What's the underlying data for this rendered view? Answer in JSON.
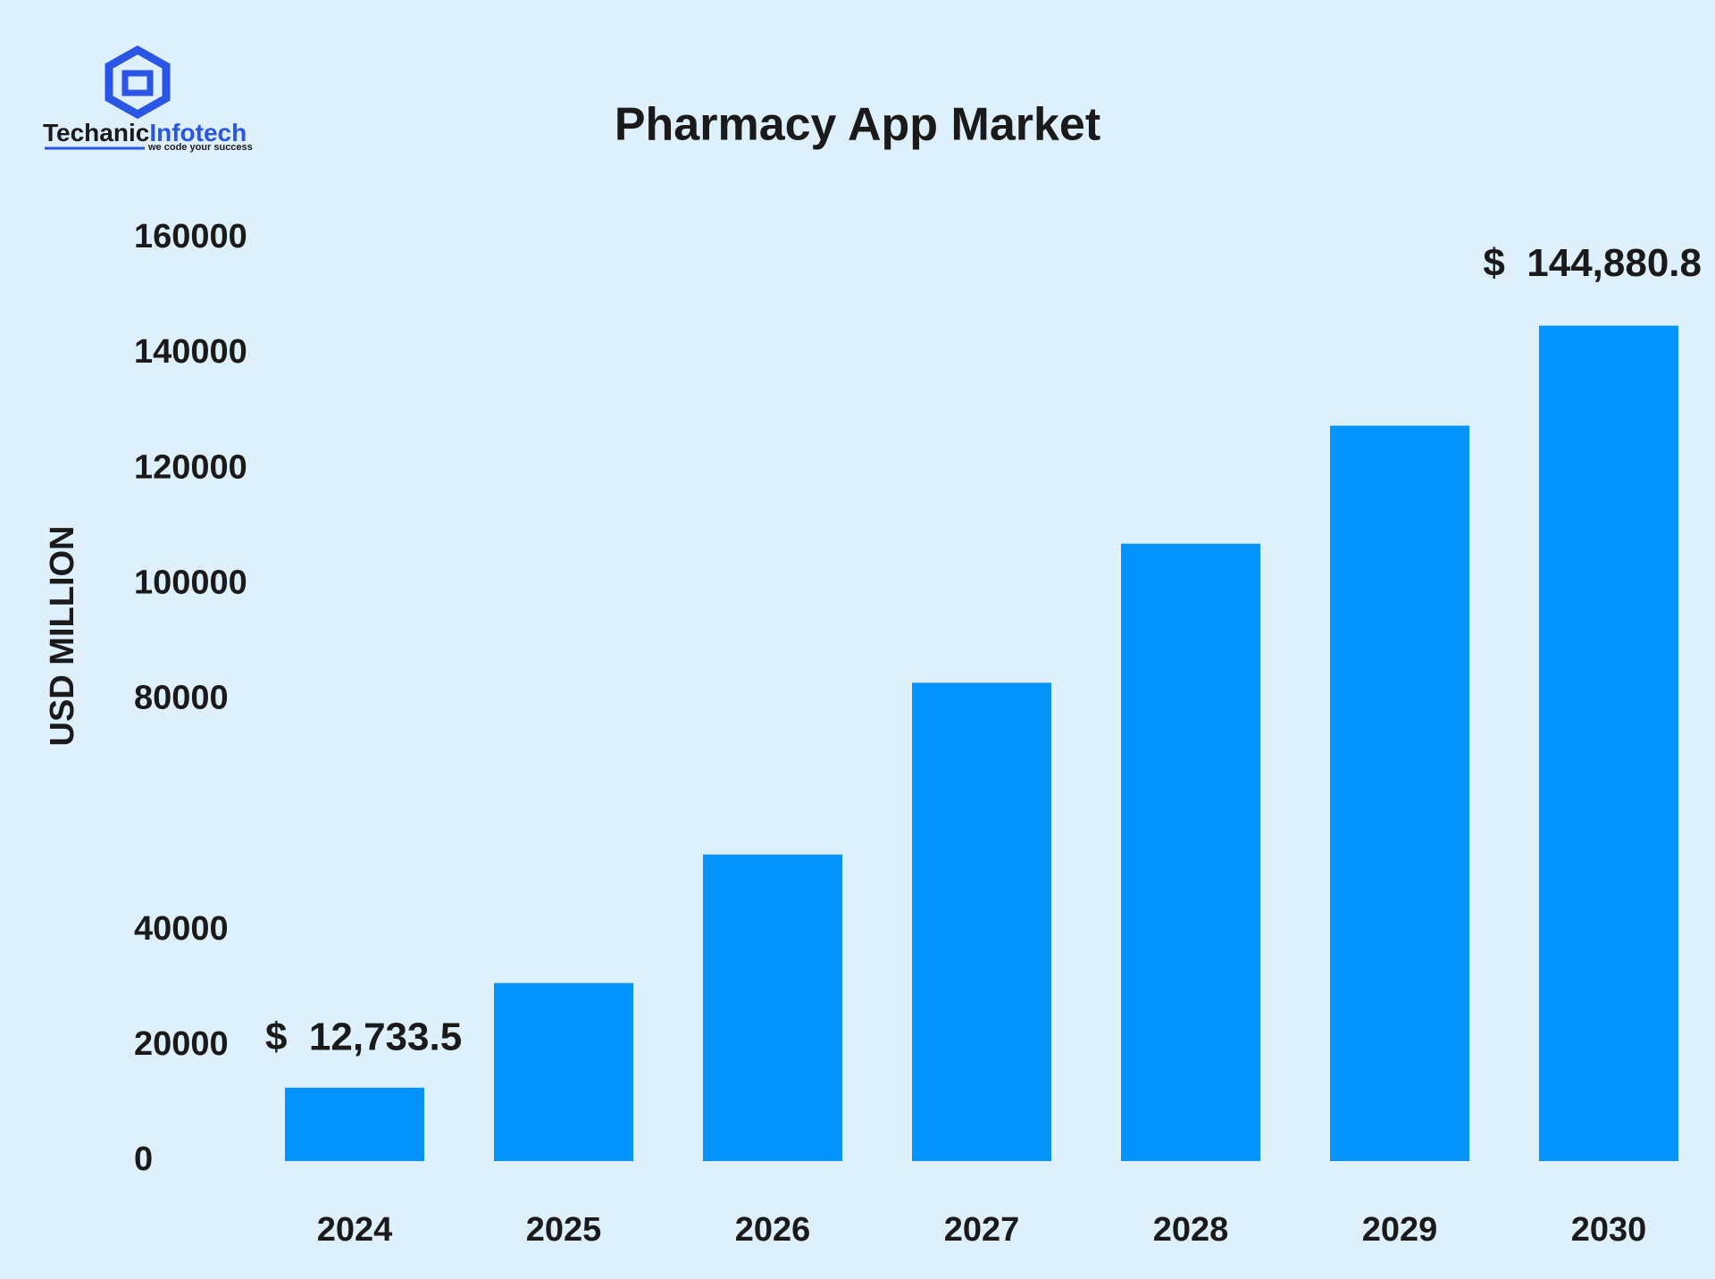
{
  "logo": {
    "name_part1": "Techanic",
    "name_part2": "Infotech",
    "tagline": "we code your success"
  },
  "chart_data": {
    "type": "bar",
    "title": "Pharmacy App Market",
    "y_label": "USD MILLION",
    "categories": [
      "2024",
      "2025",
      "2026",
      "2027",
      "2028",
      "2029",
      "2030"
    ],
    "values": [
      12733.5,
      30880,
      53170,
      82950,
      107070,
      127530,
      144880.8
    ],
    "value_labels": [
      "$  12,733.5",
      null,
      null,
      null,
      null,
      null,
      "$  144,880.8"
    ],
    "color": "#0393fa",
    "ylim": [
      0,
      160000
    ],
    "yticks": [
      0,
      20000,
      40000,
      80000,
      100000,
      120000,
      140000,
      160000
    ],
    "grid": false
  }
}
